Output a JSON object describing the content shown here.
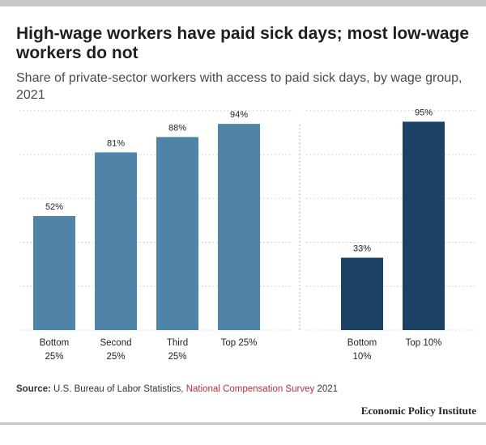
{
  "title": "High-wage workers have paid sick days; most low-wage workers do not",
  "subtitle": "Share of private-sector workers with access to paid sick days, by wage group, 2021",
  "source": {
    "label": "Source:",
    "text": "U.S. Bureau of Labor Statistics,",
    "link_text": "National Compensation Survey",
    "year": "2021"
  },
  "branding": "Economic Policy Institute",
  "colors": {
    "quartile_bars": "#4f83a8",
    "decile_bars": "#1b4262",
    "link": "#b5303c",
    "rules": "#c8c8c8"
  },
  "chart_data": {
    "type": "bar",
    "unit": "%",
    "ylim": [
      0,
      100
    ],
    "grid": "dotted horizontal",
    "groups": [
      {
        "categories": [
          [
            "Bottom",
            "25%"
          ],
          [
            "Second",
            "25%"
          ],
          [
            "Third",
            "25%"
          ],
          [
            "Top 25%"
          ]
        ],
        "values": [
          52,
          81,
          88,
          94
        ],
        "labels": [
          "52%",
          "81%",
          "88%",
          "94%"
        ]
      },
      {
        "categories": [
          [
            "Bottom",
            "10%"
          ],
          [
            "Top 10%"
          ]
        ],
        "values": [
          33,
          95
        ],
        "labels": [
          "33%",
          "95%"
        ]
      }
    ]
  }
}
